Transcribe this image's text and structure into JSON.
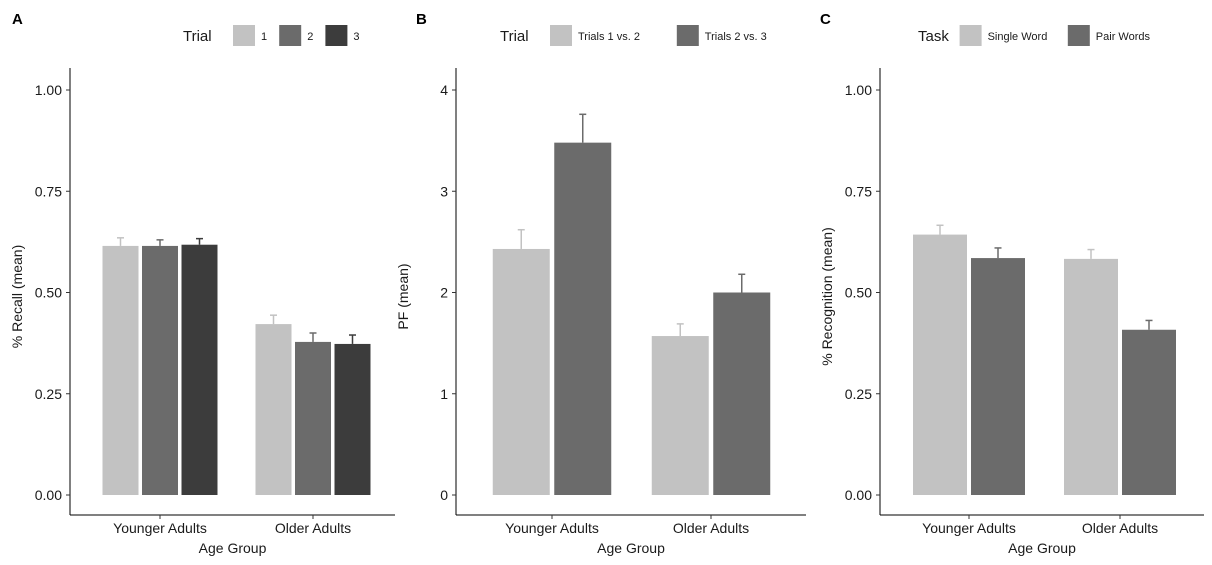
{
  "chart_data": [
    {
      "panel_label": "A",
      "type": "bar",
      "xlabel": "Age Group",
      "ylabel": "% Recall (mean)",
      "ylim": [
        0,
        1.05
      ],
      "yticks": [
        0.0,
        0.25,
        0.5,
        0.75,
        1.0
      ],
      "ytick_labels": [
        "0.00",
        "0.25",
        "0.50",
        "0.75",
        "1.00"
      ],
      "categories": [
        "Younger Adults",
        "Older Adults"
      ],
      "legend": {
        "title": "Trial",
        "position": "top"
      },
      "series": [
        {
          "name": "1",
          "color": "#c2c2c2",
          "values": [
            0.615,
            0.422
          ],
          "errors": [
            0.02,
            0.022
          ]
        },
        {
          "name": "2",
          "color": "#6b6b6b",
          "values": [
            0.615,
            0.378
          ],
          "errors": [
            0.015,
            0.022
          ]
        },
        {
          "name": "3",
          "color": "#3c3c3c",
          "values": [
            0.618,
            0.373
          ],
          "errors": [
            0.015,
            0.022
          ]
        }
      ]
    },
    {
      "panel_label": "B",
      "type": "bar",
      "xlabel": "Age Group",
      "ylabel": "PF (mean)",
      "ylim": [
        0,
        4.2
      ],
      "yticks": [
        0,
        1,
        2,
        3,
        4
      ],
      "ytick_labels": [
        "0",
        "1",
        "2",
        "3",
        "4"
      ],
      "categories": [
        "Younger Adults",
        "Older Adults"
      ],
      "legend": {
        "title": "Trial",
        "position": "top"
      },
      "series": [
        {
          "name": "Trials 1 vs. 2",
          "color": "#c2c2c2",
          "values": [
            2.43,
            1.57
          ],
          "errors": [
            0.19,
            0.12
          ]
        },
        {
          "name": "Trials 2 vs. 3",
          "color": "#6b6b6b",
          "values": [
            3.48,
            2.0
          ],
          "errors": [
            0.28,
            0.18
          ]
        }
      ]
    },
    {
      "panel_label": "C",
      "type": "bar",
      "xlabel": "Age Group",
      "ylabel": "% Recognition (mean)",
      "ylim": [
        0,
        1.05
      ],
      "yticks": [
        0.0,
        0.25,
        0.5,
        0.75,
        1.0
      ],
      "ytick_labels": [
        "0.00",
        "0.25",
        "0.50",
        "0.75",
        "1.00"
      ],
      "categories": [
        "Younger Adults",
        "Older Adults"
      ],
      "legend": {
        "title": "Task",
        "position": "top"
      },
      "series": [
        {
          "name": "Single Word",
          "color": "#c2c2c2",
          "values": [
            0.643,
            0.583
          ],
          "errors": [
            0.023,
            0.023
          ]
        },
        {
          "name": "Pair Words",
          "color": "#6b6b6b",
          "values": [
            0.585,
            0.408
          ],
          "errors": [
            0.025,
            0.023
          ]
        }
      ]
    }
  ]
}
